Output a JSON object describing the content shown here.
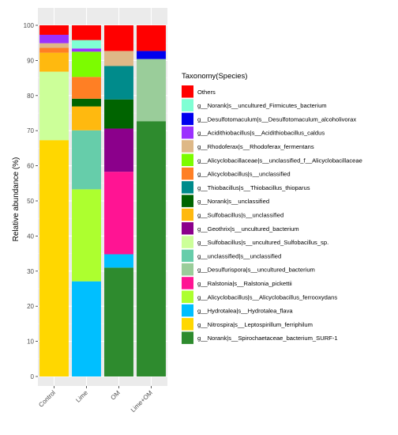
{
  "chart_data": {
    "type": "bar",
    "stacked": true,
    "xlabel": "",
    "ylabel": "Relative abundance (%)",
    "ylim": [
      0,
      100
    ],
    "yticks": [
      0,
      10,
      20,
      30,
      40,
      50,
      60,
      70,
      80,
      90,
      100
    ],
    "grid": true,
    "legend_position": "right",
    "legend_title": "Taxonomy(Species)",
    "categories": [
      "Control",
      "Lime",
      "OM",
      "Lime+OM"
    ],
    "series": [
      {
        "name": "g__Norank|s__Spirochaetaceae_bacterium_SURF-1",
        "color": "#2e8b2e",
        "values": [
          0,
          0,
          31,
          72.7
        ]
      },
      {
        "name": "g__Nitrospira|s__Leptospirillum_ferriphilum",
        "color": "#ffd700",
        "values": [
          67.3,
          0,
          0,
          0
        ]
      },
      {
        "name": "g__Hydrotalea|s__Hydrotalea_flava",
        "color": "#00bfff",
        "values": [
          0,
          27.1,
          3.8,
          0
        ]
      },
      {
        "name": "g__Alicyclobacillus|s__Alicyclobacillus_ferrooxydans",
        "color": "#adff2f",
        "values": [
          0,
          26.2,
          0,
          0
        ]
      },
      {
        "name": "g__Ralstonia|s__Ralstonia_pickettii",
        "color": "#ff1493",
        "values": [
          0,
          0,
          23.5,
          0
        ]
      },
      {
        "name": "g__Desulfurispora|s__uncultured_bacterium",
        "color": "#9acd9a",
        "values": [
          0,
          0,
          0,
          17.7
        ]
      },
      {
        "name": "g__unclassified|s__unclassified",
        "color": "#66cdaa",
        "values": [
          0,
          16.8,
          0,
          0
        ]
      },
      {
        "name": "g__Sulfobacillus|s__uncultured_Sulfobacillus_sp.",
        "color": "#ccff99",
        "values": [
          19.5,
          0,
          0,
          0
        ]
      },
      {
        "name": "g__Geothrix|s__uncultured_bacterium",
        "color": "#8b008b",
        "values": [
          0,
          0,
          12.3,
          0
        ]
      },
      {
        "name": "g__Sulfobacillus|s__unclassified",
        "color": "#ffb90f",
        "values": [
          5.4,
          6.8,
          0,
          0
        ]
      },
      {
        "name": "g__Norank|s__unclassified",
        "color": "#006400",
        "values": [
          0,
          2.2,
          8.3,
          0
        ]
      },
      {
        "name": "g__Thiobacillus|s__Thiobacillus_thioparus",
        "color": "#008b8b",
        "values": [
          0,
          0,
          9.5,
          0
        ]
      },
      {
        "name": "g__Alicyclobacillus|s__unclassified",
        "color": "#ff7f24",
        "values": [
          1.4,
          6.2,
          0,
          0
        ]
      },
      {
        "name": "g__Alicyclobacillaceae|s__unclassified_f__Alicyclobacillaceae",
        "color": "#7cfc00",
        "values": [
          0,
          7.2,
          0,
          0
        ]
      },
      {
        "name": "g__Rhodoferax|s__Rhodoferax_fermentans",
        "color": "#deb887",
        "values": [
          1.3,
          0,
          4.3,
          0
        ]
      },
      {
        "name": "g__Acidithiobacillus|s__Acidithiobacillus_caldus",
        "color": "#9b30ff",
        "values": [
          2.4,
          0.9,
          0,
          0
        ]
      },
      {
        "name": "g__Desulfotomaculum|s__Desulfotomaculum_alcoholivorax",
        "color": "#0000ee",
        "values": [
          0,
          0,
          0,
          2.3
        ]
      },
      {
        "name": "g__Norank|s__uncultured_Firmicutes_bacterium",
        "color": "#7fffd4",
        "values": [
          0,
          2.4,
          0,
          0
        ]
      },
      {
        "name": "Others",
        "color": "#ff0000",
        "values": [
          2.7,
          4.2,
          7.3,
          7.3
        ]
      }
    ]
  }
}
